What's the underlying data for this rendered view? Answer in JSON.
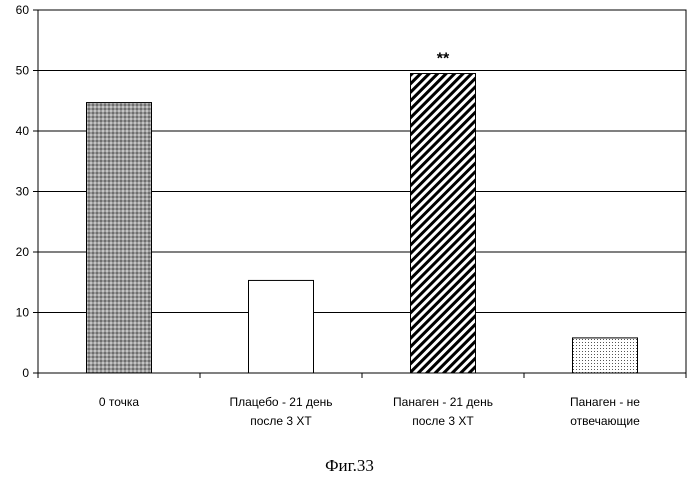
{
  "chart_data": {
    "type": "bar",
    "categories": [
      [
        "0 точка"
      ],
      [
        "Плацебо - 21 день",
        "после 3 ХТ"
      ],
      [
        "Панаген - 21 день",
        "после 3 ХТ"
      ],
      [
        "Панаген - не",
        "отвечающие"
      ]
    ],
    "values": [
      44.7,
      15.3,
      49.5,
      5.8
    ],
    "patterns": [
      "crosshatch-dark",
      "none",
      "diagonal",
      "dots"
    ],
    "annotations": [
      {
        "category_index": 2,
        "text": "**"
      }
    ],
    "ylim": [
      0,
      60
    ],
    "yticks": [
      0,
      10,
      20,
      30,
      40,
      50,
      60
    ],
    "grid": true
  },
  "caption": "Фиг.33"
}
